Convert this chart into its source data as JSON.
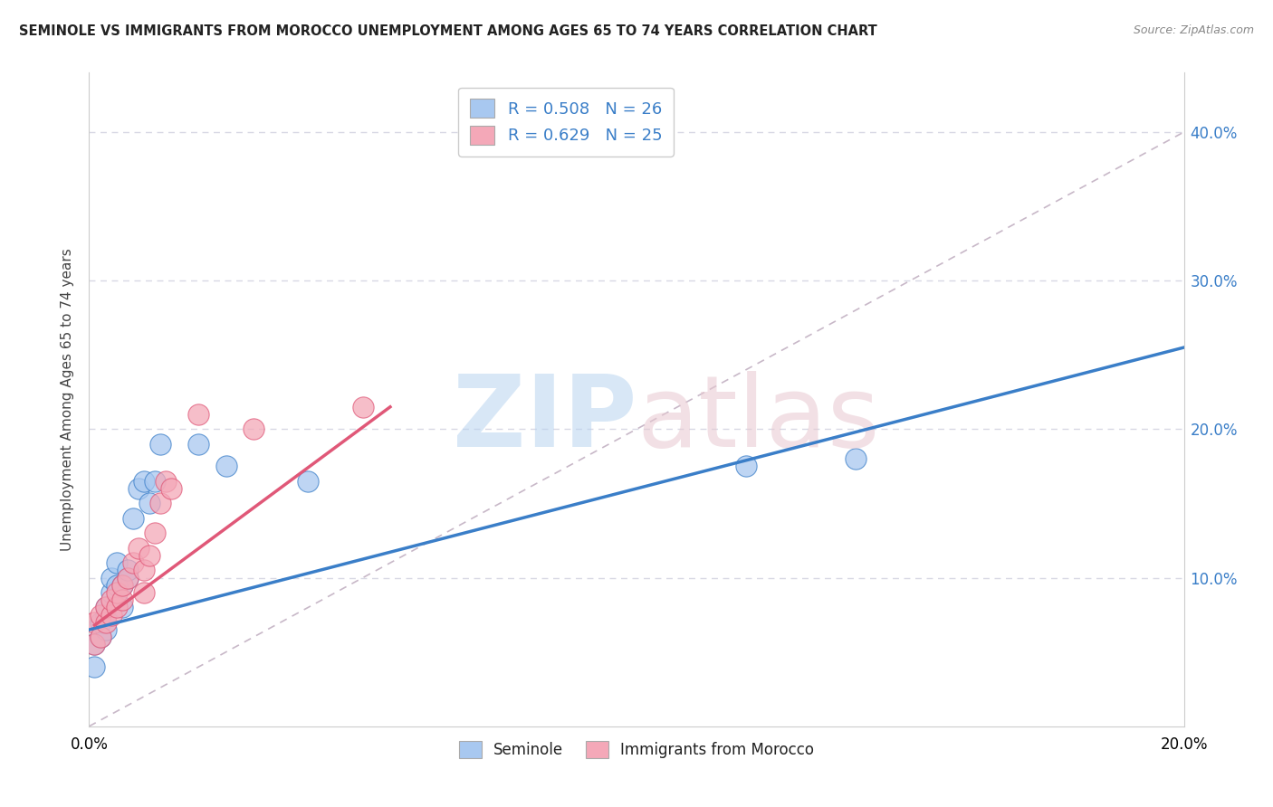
{
  "title": "SEMINOLE VS IMMIGRANTS FROM MOROCCO UNEMPLOYMENT AMONG AGES 65 TO 74 YEARS CORRELATION CHART",
  "source": "Source: ZipAtlas.com",
  "ylabel": "Unemployment Among Ages 65 to 74 years",
  "xlim": [
    0.0,
    0.2
  ],
  "ylim": [
    0.0,
    0.44
  ],
  "yticks": [
    0.0,
    0.1,
    0.2,
    0.3,
    0.4
  ],
  "seminole_color": "#a8c8f0",
  "morocco_color": "#f4a8b8",
  "seminole_line_color": "#3a7ec8",
  "morocco_line_color": "#e05878",
  "ref_line_color": "#c8b8c8",
  "legend_R_seminole": "R = 0.508",
  "legend_N_seminole": "N = 26",
  "legend_R_morocco": "R = 0.629",
  "legend_N_morocco": "N = 25",
  "seminole_scatter_x": [
    0.001,
    0.001,
    0.002,
    0.002,
    0.003,
    0.003,
    0.003,
    0.004,
    0.004,
    0.005,
    0.005,
    0.006,
    0.006,
    0.007,
    0.007,
    0.008,
    0.009,
    0.01,
    0.011,
    0.012,
    0.013,
    0.02,
    0.025,
    0.04,
    0.12,
    0.14
  ],
  "seminole_scatter_y": [
    0.04,
    0.055,
    0.06,
    0.07,
    0.065,
    0.075,
    0.08,
    0.09,
    0.1,
    0.095,
    0.11,
    0.08,
    0.095,
    0.1,
    0.105,
    0.14,
    0.16,
    0.165,
    0.15,
    0.165,
    0.19,
    0.19,
    0.175,
    0.165,
    0.175,
    0.18
  ],
  "morocco_scatter_x": [
    0.001,
    0.001,
    0.002,
    0.002,
    0.003,
    0.003,
    0.004,
    0.004,
    0.005,
    0.005,
    0.006,
    0.006,
    0.007,
    0.008,
    0.009,
    0.01,
    0.01,
    0.011,
    0.012,
    0.013,
    0.014,
    0.015,
    0.02,
    0.03,
    0.05
  ],
  "morocco_scatter_y": [
    0.055,
    0.07,
    0.06,
    0.075,
    0.07,
    0.08,
    0.075,
    0.085,
    0.08,
    0.09,
    0.085,
    0.095,
    0.1,
    0.11,
    0.12,
    0.09,
    0.105,
    0.115,
    0.13,
    0.15,
    0.165,
    0.16,
    0.21,
    0.2,
    0.215
  ],
  "seminole_trend_x": [
    0.0,
    0.2
  ],
  "seminole_trend_y": [
    0.065,
    0.255
  ],
  "morocco_trend_x": [
    0.001,
    0.055
  ],
  "morocco_trend_y": [
    0.068,
    0.215
  ],
  "ref_line_x": [
    0.0,
    0.2
  ],
  "ref_line_y": [
    0.0,
    0.4
  ],
  "background_color": "#ffffff",
  "grid_color": "#d8d8e4"
}
